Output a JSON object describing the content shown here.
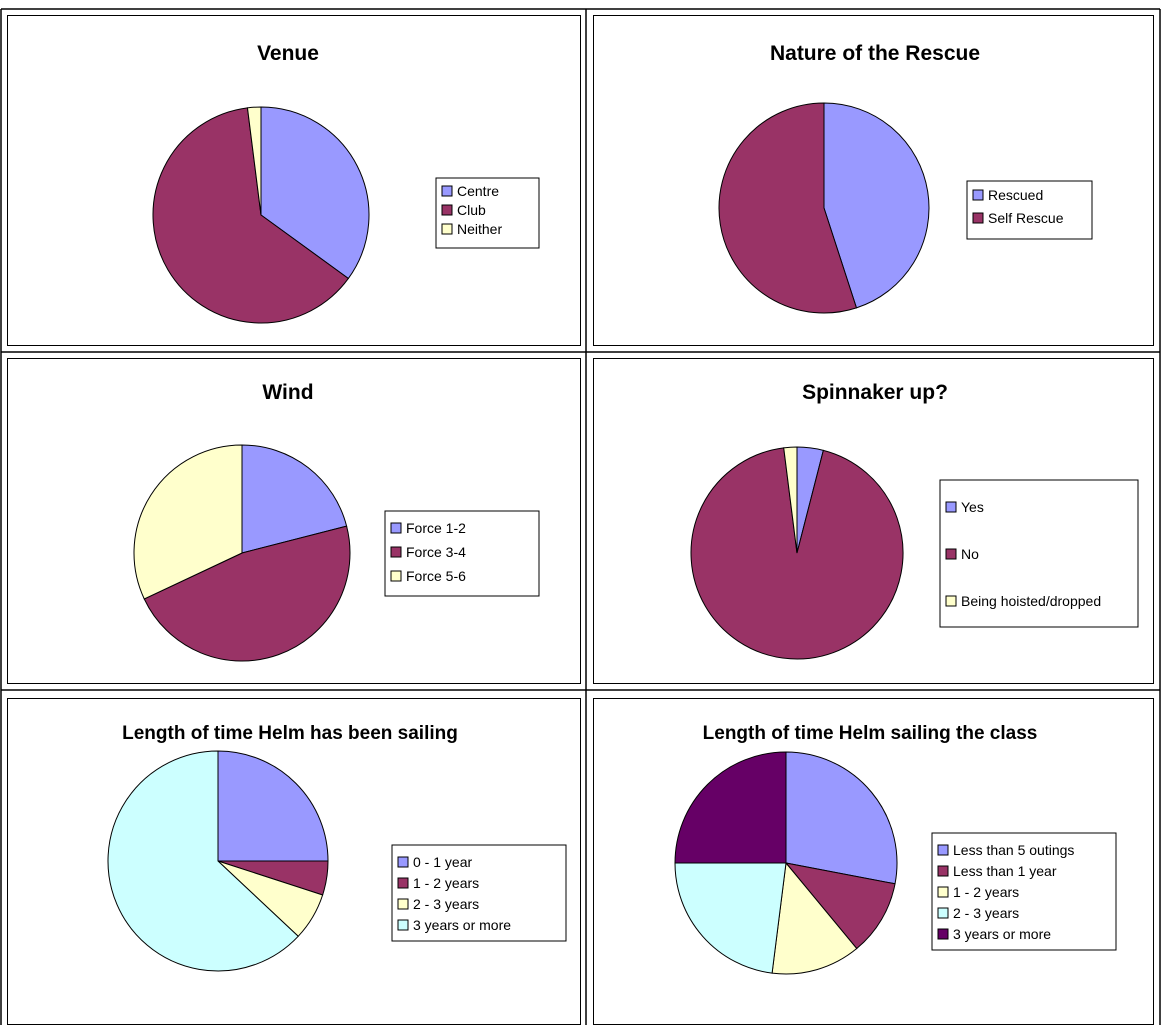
{
  "chart_data": [
    {
      "type": "pie",
      "title": "Venue",
      "categories": [
        "Centre",
        "Club",
        "Neither"
      ],
      "values": [
        35,
        63,
        2
      ],
      "colors": [
        "#9999ff",
        "#993366",
        "#ffffcc"
      ]
    },
    {
      "type": "pie",
      "title": "Nature of the Rescue",
      "categories": [
        "Rescued",
        "Self Rescue"
      ],
      "values": [
        45,
        55
      ],
      "colors": [
        "#9999ff",
        "#993366"
      ]
    },
    {
      "type": "pie",
      "title": "Wind",
      "categories": [
        "Force 1-2",
        "Force 3-4",
        "Force 5-6"
      ],
      "values": [
        21,
        47,
        32
      ],
      "colors": [
        "#9999ff",
        "#993366",
        "#ffffcc"
      ]
    },
    {
      "type": "pie",
      "title": "Spinnaker up?",
      "categories": [
        "Yes",
        "No",
        "Being hoisted/dropped"
      ],
      "values": [
        4,
        94,
        2
      ],
      "colors": [
        "#9999ff",
        "#993366",
        "#ffffcc"
      ]
    },
    {
      "type": "pie",
      "title": "Length of time Helm has been sailing",
      "categories": [
        "0 - 1 year",
        "1 - 2 years",
        "2 - 3 years",
        "3 years or more"
      ],
      "values": [
        25,
        5,
        7,
        63
      ],
      "colors": [
        "#9999ff",
        "#993366",
        "#ffffcc",
        "#ccffff"
      ]
    },
    {
      "type": "pie",
      "title": "Length of time Helm sailing the class",
      "categories": [
        "Less than 5 outings",
        "Less than 1 year",
        "1 - 2 years",
        "2 - 3 years",
        "3 years or more"
      ],
      "values": [
        28,
        11,
        13,
        23,
        25
      ],
      "colors": [
        "#9999ff",
        "#993366",
        "#ffffcc",
        "#ccffff",
        "#660066"
      ]
    }
  ]
}
